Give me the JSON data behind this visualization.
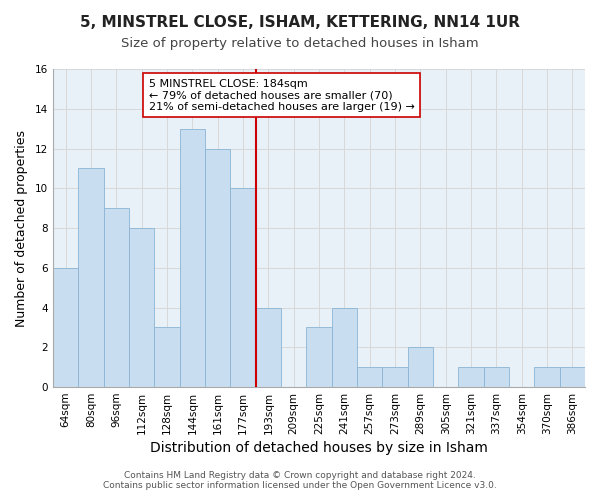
{
  "title": "5, MINSTREL CLOSE, ISHAM, KETTERING, NN14 1UR",
  "subtitle": "Size of property relative to detached houses in Isham",
  "xlabel": "Distribution of detached houses by size in Isham",
  "ylabel": "Number of detached properties",
  "footer_line1": "Contains HM Land Registry data © Crown copyright and database right 2024.",
  "footer_line2": "Contains public sector information licensed under the Open Government Licence v3.0.",
  "bin_labels": [
    "64sqm",
    "80sqm",
    "96sqm",
    "112sqm",
    "128sqm",
    "144sqm",
    "161sqm",
    "177sqm",
    "193sqm",
    "209sqm",
    "225sqm",
    "241sqm",
    "257sqm",
    "273sqm",
    "289sqm",
    "305sqm",
    "321sqm",
    "337sqm",
    "354sqm",
    "370sqm",
    "386sqm"
  ],
  "bar_heights": [
    6,
    11,
    9,
    8,
    3,
    13,
    12,
    10,
    4,
    0,
    3,
    4,
    1,
    1,
    2,
    0,
    1,
    1,
    0,
    1,
    1
  ],
  "bar_color": "#c8ddf0",
  "bar_edge_color": "#8ab4d4",
  "vline_x_index": 7.5,
  "vline_color": "#cc0000",
  "annotation_line1": "5 MINSTREL CLOSE: 184sqm",
  "annotation_line2": "← 79% of detached houses are smaller (70)",
  "annotation_line3": "21% of semi-detached houses are larger (19) →",
  "annotation_box_edge_color": "#cc0000",
  "annotation_box_face_color": "#ffffff",
  "ylim": [
    0,
    16
  ],
  "yticks": [
    0,
    2,
    4,
    6,
    8,
    10,
    12,
    14,
    16
  ],
  "grid_color": "#d8d8d8",
  "background_color": "#ffffff",
  "plot_bg_color": "#e8f0f8",
  "title_fontsize": 11,
  "subtitle_fontsize": 9.5,
  "xlabel_fontsize": 10,
  "ylabel_fontsize": 9,
  "tick_fontsize": 7.5,
  "annotation_fontsize": 8,
  "footer_fontsize": 6.5
}
